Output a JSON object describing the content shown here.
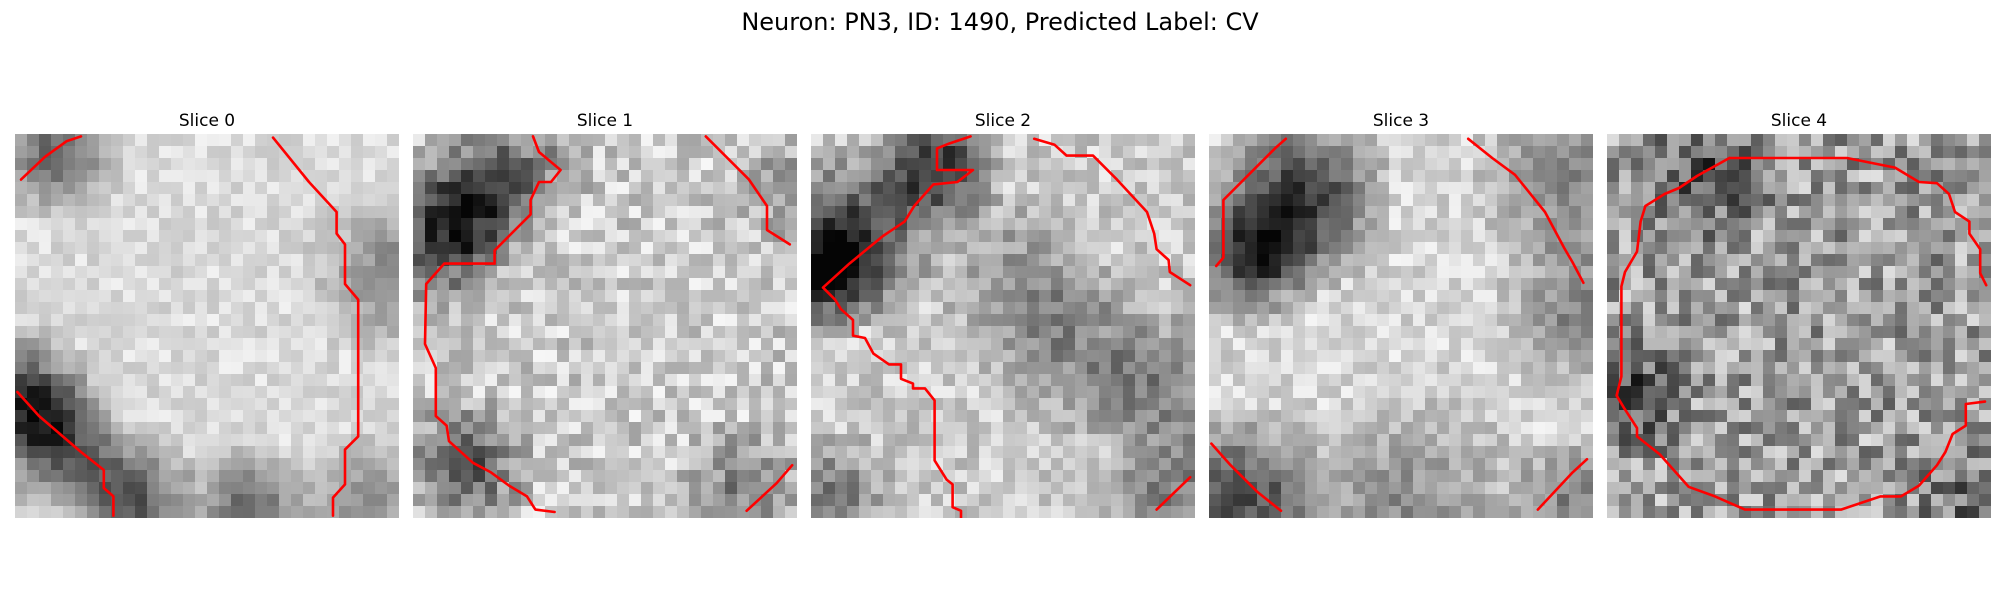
{
  "figure": {
    "title": "Neuron: PN3, ID: 1490, Predicted Label: CV"
  },
  "panels": [
    {
      "title": "Slice 0",
      "texture": "bright-cell-dark-corners",
      "contour_color": "#ff0000"
    },
    {
      "title": "Slice 1",
      "texture": "speckled-bright-cell",
      "contour_color": "#ff0000"
    },
    {
      "title": "Slice 2",
      "texture": "bright-cell-dark-band-top-left",
      "contour_color": "#ff0000"
    },
    {
      "title": "Slice 3",
      "texture": "bright-cell-dark-ring",
      "contour_color": "#ff0000"
    },
    {
      "title": "Slice 4",
      "texture": "noisy-gray-cell",
      "contour_color": "#ff0000"
    }
  ],
  "colormap": "gray",
  "contour_color": "#ff0000"
}
